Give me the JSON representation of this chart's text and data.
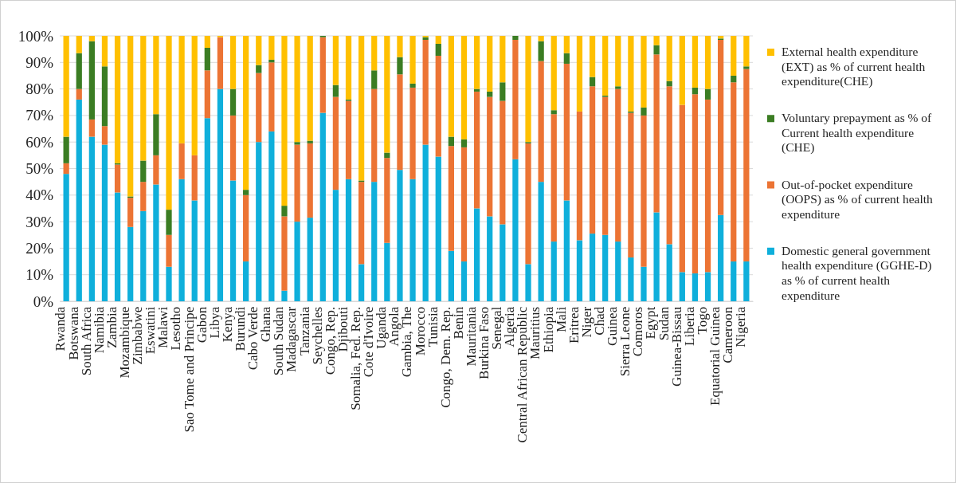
{
  "chart_data": {
    "type": "bar",
    "stacked": true,
    "categories": [
      "Rwanda",
      "Botswana",
      "South Africa",
      "Namibia",
      "Zambia",
      "Mozambique",
      "Zimbabwe",
      "Eswatini",
      "Malawi",
      "Lesotho",
      "Sao Tome and Principe",
      "Gabon",
      "Libya",
      "Kenya",
      "Burundi",
      "Cabo Verde",
      "Ghana",
      "South Sudan",
      "Madagascar",
      "Tanzania",
      "Seychelles",
      "Congo, Rep.",
      "Djibouti",
      "Somalia, Fed. Rep.",
      "Cote d'Ivoire",
      "Uganda",
      "Angola",
      "Gambia, The",
      "Morocco",
      "Tunisia",
      "Congo, Dem. Rep.",
      "Benin",
      "Mauritania",
      "Burkina Faso",
      "Senegal",
      "Algeria",
      "Central African Republic",
      "Mauritius",
      "Ethiopia",
      "Mali",
      "Eritrea",
      "Niger",
      "Chad",
      "Guinea",
      "Sierra Leone",
      "Comoros",
      "Egypt",
      "Sudan",
      "Guinea-Bissau",
      "Liberia",
      "Togo",
      "Equatorial Guinea",
      "Cameroon",
      "Nigeria"
    ],
    "series": [
      {
        "name": "Domestic general government health expenditure (GGHE-D) as % of current health expenditure",
        "color": "#0fafdb",
        "values": [
          48,
          76,
          62,
          59,
          41,
          28,
          34,
          44,
          13,
          46,
          38,
          69,
          80,
          45.5,
          15,
          60,
          64,
          4,
          30,
          31.5,
          71,
          42,
          46,
          14,
          45,
          22,
          49.5,
          46,
          59,
          54.5,
          19,
          15,
          35,
          32,
          29,
          53.5,
          14,
          45,
          22.5,
          38,
          23,
          25.5,
          25,
          22.5,
          16.5,
          13,
          33.5,
          21.5,
          11,
          10.5,
          11,
          32.5,
          15,
          15
        ]
      },
      {
        "name": "Out-of-pocket expenditure (OOPS) as % of current health expenditure",
        "color": "#ec7434",
        "values": [
          4,
          4,
          6.5,
          7,
          10.5,
          11,
          11,
          11,
          12,
          13.5,
          17,
          18,
          19.5,
          24.5,
          25,
          26,
          26,
          28,
          29,
          28,
          28.5,
          35,
          29.5,
          31,
          35,
          32,
          36,
          34.5,
          39.5,
          38,
          39.5,
          43,
          44,
          45,
          46.5,
          45,
          45.5,
          45.5,
          48,
          51.5,
          48.5,
          55.5,
          52,
          57.5,
          54.5,
          57,
          59.5,
          59.5,
          63,
          67.5,
          65,
          66,
          67.5,
          72.5
        ]
      },
      {
        "name": "Voluntary prepayment as % of Current health expenditure (CHE)",
        "color": "#3b7d23",
        "values": [
          10,
          13.5,
          29.5,
          22.5,
          0.5,
          0.5,
          8,
          15.5,
          9.5,
          0,
          0,
          8.5,
          0,
          10,
          2,
          3,
          1,
          4,
          1,
          1,
          0.5,
          4.5,
          0.5,
          0.5,
          7,
          2,
          6.5,
          1.5,
          1,
          4.5,
          3.5,
          3,
          1,
          2,
          7,
          1.5,
          0.5,
          7.5,
          1.5,
          4,
          0,
          3.5,
          0.5,
          1,
          0.5,
          3,
          3.5,
          2,
          0,
          2.5,
          4,
          0.5,
          2.5,
          1
        ]
      },
      {
        "name": "External health expenditure (EXT) as % of current health expenditure(CHE)",
        "color": "#ffc000",
        "values": [
          38,
          6.5,
          2,
          11.5,
          48,
          60.5,
          47,
          29.5,
          65.5,
          40.5,
          45,
          4.5,
          0.5,
          20,
          58,
          11,
          9,
          64,
          40,
          39.5,
          0,
          18.5,
          24,
          54.5,
          13,
          44,
          8,
          18,
          0.5,
          3,
          38,
          39,
          20,
          21,
          17.5,
          0,
          40,
          2,
          28,
          6.5,
          28.5,
          15.5,
          22.5,
          19,
          28.5,
          27,
          3.5,
          17,
          26,
          19.5,
          20,
          1,
          15,
          11.5
        ]
      }
    ],
    "ylim": [
      0,
      100
    ],
    "yticks": [
      {
        "value": 0,
        "label": "0%"
      },
      {
        "value": 10,
        "label": "10%"
      },
      {
        "value": 20,
        "label": "20%"
      },
      {
        "value": 30,
        "label": "30%"
      },
      {
        "value": 40,
        "label": "40%"
      },
      {
        "value": 50,
        "label": "50%"
      },
      {
        "value": 60,
        "label": "60%"
      },
      {
        "value": 70,
        "label": "70%"
      },
      {
        "value": 80,
        "label": "80%"
      },
      {
        "value": 90,
        "label": "90%"
      },
      {
        "value": 100,
        "label": "100%"
      }
    ],
    "grid": "y",
    "legend": "right"
  }
}
